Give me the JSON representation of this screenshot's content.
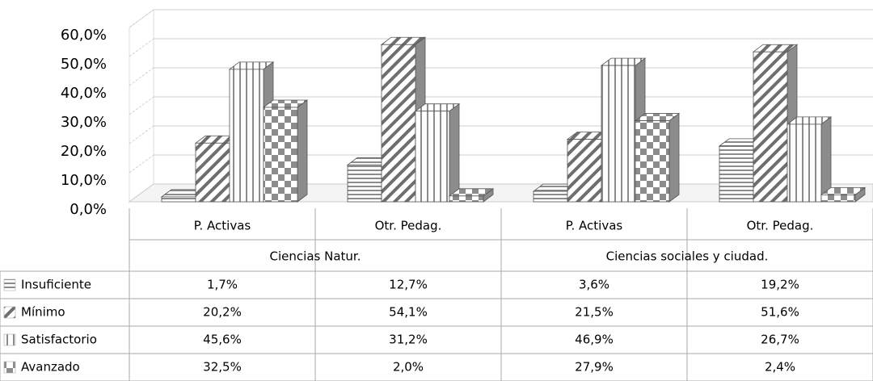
{
  "chart_data": {
    "type": "bar3d",
    "groups": [
      {
        "name": "Ciencias Natur.",
        "categories": [
          "P. Activas",
          "Otr. Pedag."
        ]
      },
      {
        "name": "Ciencias sociales y ciudad.",
        "categories": [
          "P. Activas",
          "Otr. Pedag."
        ]
      }
    ],
    "series": [
      {
        "name": "Insuficiente",
        "pattern": "horizontal",
        "color": "#8c8c8c",
        "values": [
          1.7,
          12.7,
          3.6,
          19.2
        ],
        "value_labels": [
          "1,7%",
          "12,7%",
          "3,6%",
          "19,2%"
        ]
      },
      {
        "name": "Mínimo",
        "pattern": "diagonal",
        "color": "#8c8c8c",
        "values": [
          20.2,
          54.1,
          21.5,
          51.6
        ],
        "value_labels": [
          "20,2%",
          "54,1%",
          "21,5%",
          "51,6%"
        ]
      },
      {
        "name": "Satisfactorio",
        "pattern": "vertical",
        "color": "#8c8c8c",
        "values": [
          45.6,
          31.2,
          46.9,
          26.7
        ],
        "value_labels": [
          "45,6%",
          "31,2%",
          "46,9%",
          "26,7%"
        ]
      },
      {
        "name": "Avanzado",
        "pattern": "checker",
        "color": "#8c8c8c",
        "values": [
          32.5,
          2.0,
          27.9,
          2.4
        ],
        "value_labels": [
          "32,5%",
          "2,0%",
          "27,9%",
          "2,4%"
        ]
      }
    ],
    "ylim": [
      0,
      60
    ],
    "yticks": [
      {
        "value": 0,
        "label": "0,0%"
      },
      {
        "value": 10,
        "label": "10,0%"
      },
      {
        "value": 20,
        "label": "20,0%"
      },
      {
        "value": 30,
        "label": "30,0%"
      },
      {
        "value": 40,
        "label": "40,0%"
      },
      {
        "value": 50,
        "label": "50,0%"
      },
      {
        "value": 60,
        "label": "60,0%"
      }
    ],
    "grid": true
  }
}
